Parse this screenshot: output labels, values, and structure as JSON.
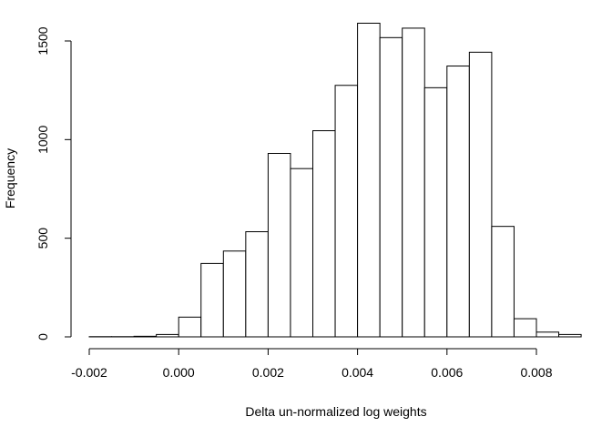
{
  "chart_data": {
    "type": "bar",
    "title": "",
    "xlabel": "Delta un-normalized log weights",
    "ylabel": "Frequency",
    "xlim": [
      -0.002,
      0.009
    ],
    "ylim": [
      0,
      1600
    ],
    "bin_width": 0.0005,
    "x_ticks": [
      -0.002,
      0.0,
      0.002,
      0.004,
      0.006,
      0.008
    ],
    "x_tick_labels": [
      "-0.002",
      "0.000",
      "0.002",
      "0.004",
      "0.006",
      "0.008"
    ],
    "y_ticks": [
      0,
      500,
      1000,
      1500
    ],
    "y_tick_labels": [
      "0",
      "500",
      "1000",
      "1500"
    ],
    "bins": [
      {
        "start": -0.002,
        "end": -0.0015,
        "count": 1
      },
      {
        "start": -0.0015,
        "end": -0.001,
        "count": 1
      },
      {
        "start": -0.001,
        "end": -0.0005,
        "count": 3
      },
      {
        "start": -0.0005,
        "end": 0.0,
        "count": 12
      },
      {
        "start": 0.0,
        "end": 0.0005,
        "count": 100
      },
      {
        "start": 0.0005,
        "end": 0.001,
        "count": 372
      },
      {
        "start": 0.001,
        "end": 0.0015,
        "count": 435
      },
      {
        "start": 0.0015,
        "end": 0.002,
        "count": 533
      },
      {
        "start": 0.002,
        "end": 0.0025,
        "count": 930
      },
      {
        "start": 0.0025,
        "end": 0.003,
        "count": 853
      },
      {
        "start": 0.003,
        "end": 0.0035,
        "count": 1045
      },
      {
        "start": 0.0035,
        "end": 0.004,
        "count": 1275
      },
      {
        "start": 0.004,
        "end": 0.0045,
        "count": 1590
      },
      {
        "start": 0.0045,
        "end": 0.005,
        "count": 1517
      },
      {
        "start": 0.005,
        "end": 0.0055,
        "count": 1565
      },
      {
        "start": 0.0055,
        "end": 0.006,
        "count": 1263
      },
      {
        "start": 0.006,
        "end": 0.0065,
        "count": 1373
      },
      {
        "start": 0.0065,
        "end": 0.007,
        "count": 1443
      },
      {
        "start": 0.007,
        "end": 0.0075,
        "count": 560
      },
      {
        "start": 0.0075,
        "end": 0.008,
        "count": 92
      },
      {
        "start": 0.008,
        "end": 0.0085,
        "count": 24
      },
      {
        "start": 0.0085,
        "end": 0.009,
        "count": 12
      }
    ]
  }
}
